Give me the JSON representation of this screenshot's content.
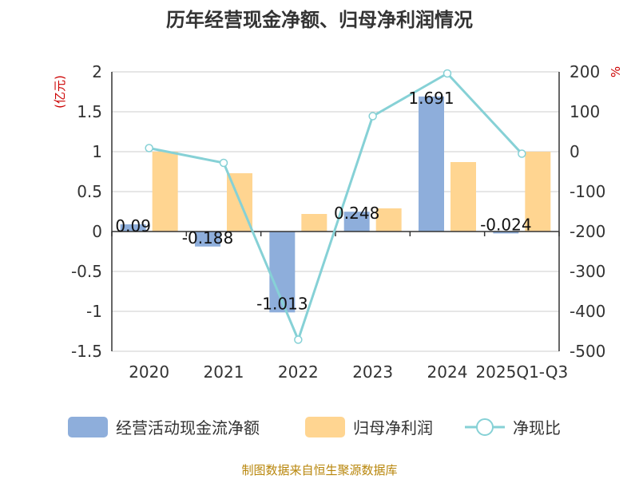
{
  "colors": {
    "bar1": "#8eaedb",
    "bar2": "#ffd591",
    "line": "#86d1d6",
    "axis": "#333333",
    "grid": "#cccccc",
    "unit": "#cc0000",
    "source": "#b8860b"
  },
  "chart_data": {
    "type": "bar",
    "title": "历年经营现金净额、归母净利润情况",
    "left_unit": "(亿元)",
    "right_unit": "%",
    "categories": [
      "2020",
      "2021",
      "2022",
      "2023",
      "2024",
      "2025Q1-Q3"
    ],
    "y_left_ticks": [
      "2",
      "1.5",
      "1",
      "0.5",
      "0",
      "-0.5",
      "-1",
      "-1.5"
    ],
    "y_right_ticks": [
      "200",
      "100",
      "0",
      "-100",
      "-200",
      "-300",
      "-400",
      "-500"
    ],
    "ylim_left": [
      -1.5,
      2
    ],
    "ylim_right": [
      -500,
      200
    ],
    "grid": true,
    "legend_position": "bottom",
    "series": [
      {
        "name": "经营活动现金流净额",
        "kind": "bar",
        "axis": "left",
        "values": [
          0.09,
          -0.188,
          -1.013,
          0.248,
          1.691,
          -0.024
        ],
        "labels": [
          "0.09",
          "-0.188",
          "-1.013",
          "0.248",
          "1.691",
          "-0.024"
        ]
      },
      {
        "name": "归母净利润",
        "kind": "bar",
        "axis": "left",
        "values": [
          1.0,
          0.73,
          0.22,
          0.29,
          0.87,
          1.0
        ]
      },
      {
        "name": "净现比",
        "kind": "line",
        "axis": "right",
        "values": [
          9,
          -28,
          -471,
          89,
          196,
          -5
        ]
      }
    ]
  },
  "source_text": "制图数据来自恒生聚源数据库"
}
